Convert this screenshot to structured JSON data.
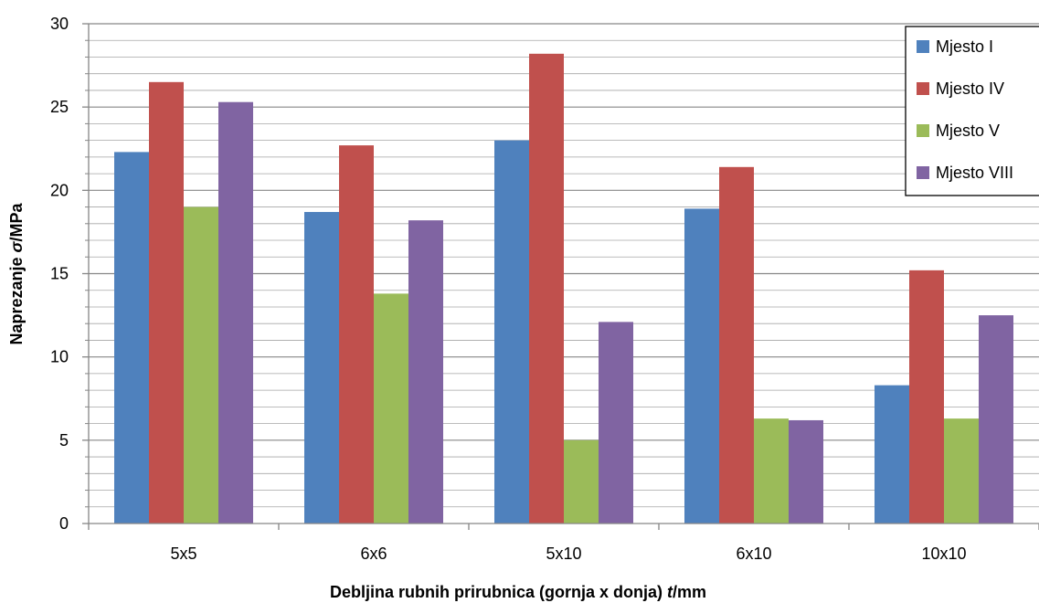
{
  "chart_data": {
    "type": "bar",
    "title": "",
    "xlabel": "Debljina rubnih prirubnica (gornja x donja) t/mm",
    "xlabel_parts": {
      "before": "Debljina rubnih prirubnica (gornja x donja) ",
      "italic": "t",
      "after": "/mm"
    },
    "ylabel": "Naprezanje σ/MPa",
    "ylabel_parts": {
      "before": "Naprezanje ",
      "italic": "σ",
      "after": "/MPa"
    },
    "categories": [
      "5x5",
      "6x6",
      "5x10",
      "6x10",
      "10x10"
    ],
    "ylim": [
      0,
      30
    ],
    "yticks": [
      0,
      5,
      10,
      15,
      20,
      25,
      30
    ],
    "minor_step": 1,
    "grid": true,
    "legend_position": "top-right",
    "series": [
      {
        "name": "Mjesto I",
        "color": "#4F81BD",
        "values": [
          22.3,
          18.7,
          23.0,
          18.9,
          8.3
        ]
      },
      {
        "name": "Mjesto IV",
        "color": "#C0504D",
        "values": [
          26.5,
          22.7,
          28.2,
          21.4,
          15.2
        ]
      },
      {
        "name": "Mjesto V",
        "color": "#9BBB59",
        "values": [
          19.0,
          13.8,
          5.0,
          6.3,
          6.3
        ]
      },
      {
        "name": "Mjesto VIII",
        "color": "#8064A2",
        "values": [
          25.3,
          18.2,
          12.1,
          6.2,
          12.5
        ]
      }
    ]
  }
}
